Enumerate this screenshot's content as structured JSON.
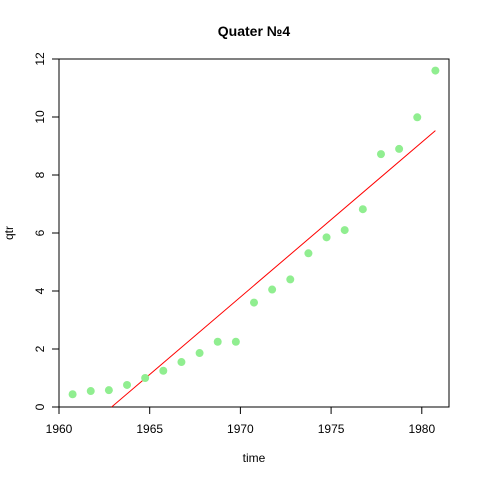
{
  "chart_data": {
    "type": "scatter",
    "title": "Quater №4",
    "xlabel": "time",
    "ylabel": "qtr",
    "xlim": [
      1960,
      1981.5
    ],
    "ylim": [
      0,
      12
    ],
    "xticks": [
      1960,
      1965,
      1970,
      1975,
      1980
    ],
    "yticks": [
      0,
      2,
      4,
      6,
      8,
      10,
      12
    ],
    "grid": false,
    "point_color": "#90ee90",
    "line_color": "#ff0000",
    "points": {
      "x": [
        1960.75,
        1961.75,
        1962.75,
        1963.75,
        1964.75,
        1965.75,
        1966.75,
        1967.75,
        1968.75,
        1969.75,
        1970.75,
        1971.75,
        1972.75,
        1973.75,
        1974.75,
        1975.75,
        1976.75,
        1977.75,
        1978.75,
        1979.75,
        1980.75
      ],
      "y": [
        0.44,
        0.55,
        0.58,
        0.76,
        1.0,
        1.25,
        1.55,
        1.86,
        2.25,
        2.25,
        3.6,
        4.05,
        4.4,
        5.3,
        5.85,
        6.1,
        6.82,
        8.72,
        8.9,
        9.99,
        11.6
      ]
    },
    "trend_line": {
      "x": [
        1962.9,
        1980.75
      ],
      "y": [
        0.0,
        9.53
      ]
    }
  }
}
